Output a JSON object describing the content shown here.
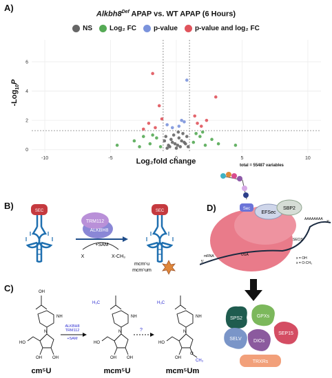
{
  "panel_labels": {
    "a": "A)",
    "b": "B)",
    "c": "C)",
    "d": "D)"
  },
  "chart_data": {
    "type": "scatter",
    "title_italic": "Alkbh8",
    "title_superscript": "Def",
    "title_rest": " APAP vs. WT APAP (6 Hours)",
    "xlabel": "Log₂fold change",
    "ylabel_main": "-Log",
    "ylabel_sub": "10",
    "ylabel_var": "P",
    "xlim": [
      -11,
      11
    ],
    "ylim": [
      -0.2,
      7.5
    ],
    "xticks": [
      "-10",
      "-5",
      "0",
      "5",
      "10"
    ],
    "xtick_values": [
      -10,
      -5,
      0,
      5,
      10
    ],
    "yticks": [
      "0",
      "2",
      "4",
      "6"
    ],
    "ytick_values": [
      0,
      2,
      4,
      6
    ],
    "fc_cutoff": 1,
    "p_cutoff": 1.3,
    "grid": true,
    "legend_position": "top",
    "total_note": "total = 55487 variables",
    "series": [
      {
        "name": "NS",
        "color": "#666666",
        "points": [
          [
            -0.5,
            0.2
          ],
          [
            -0.3,
            0.5
          ],
          [
            0.1,
            0.3
          ],
          [
            0.4,
            0.6
          ],
          [
            -0.8,
            0.9
          ],
          [
            0.7,
            0.4
          ],
          [
            0.2,
            0.8
          ],
          [
            -0.6,
            0.3
          ],
          [
            0.9,
            0.2
          ],
          [
            -0.2,
            1.0
          ],
          [
            0.5,
            1.1
          ],
          [
            -0.9,
            0.6
          ],
          [
            0.0,
            0.1
          ],
          [
            0.3,
            0.2
          ],
          [
            -0.4,
            0.7
          ],
          [
            0.8,
            0.9
          ],
          [
            -0.1,
            0.4
          ],
          [
            0.6,
            0.5
          ],
          [
            -0.7,
            0.1
          ],
          [
            0.15,
            1.2
          ]
        ]
      },
      {
        "name": "Log₂ FC",
        "color": "#55aa55",
        "points": [
          [
            -4.5,
            0.3
          ],
          [
            -3.2,
            0.6
          ],
          [
            -2.5,
            0.9
          ],
          [
            -2.0,
            0.4
          ],
          [
            -1.5,
            0.8
          ],
          [
            -1.2,
            0.2
          ],
          [
            -1.8,
            1.0
          ],
          [
            1.3,
            0.5
          ],
          [
            1.8,
            0.9
          ],
          [
            2.2,
            0.3
          ],
          [
            2.7,
            0.7
          ],
          [
            3.2,
            0.4
          ],
          [
            4.5,
            0.3
          ],
          [
            1.5,
            1.1
          ],
          [
            -2.8,
            0.2
          ],
          [
            2.0,
            1.2
          ]
        ]
      },
      {
        "name": "p-value",
        "color": "#7b93dc",
        "points": [
          [
            0.2,
            1.6
          ],
          [
            -0.3,
            1.5
          ],
          [
            0.6,
            1.9
          ],
          [
            0.8,
            4.75
          ],
          [
            -0.7,
            1.7
          ],
          [
            0.4,
            2.0
          ]
        ]
      },
      {
        "name": "p-value and log₂ FC",
        "color": "#e0545c",
        "points": [
          [
            -1.8,
            5.2
          ],
          [
            -1.1,
            2.1
          ],
          [
            -1.3,
            3.0
          ],
          [
            -2.1,
            1.8
          ],
          [
            -1.6,
            1.5
          ],
          [
            1.4,
            2.3
          ],
          [
            1.6,
            1.8
          ],
          [
            2.3,
            2.0
          ],
          [
            3.0,
            3.6
          ],
          [
            1.9,
            1.6
          ],
          [
            -2.5,
            1.4
          ]
        ]
      }
    ]
  },
  "panel_b": {
    "sec_label": "SEC",
    "enzyme_top": "TRM112",
    "enzyme_bottom": "ALKBH8",
    "cofactor": "+SAM",
    "substrate_in": "X",
    "substrate_out": "X-CH₃",
    "modification_1": "mcm⁵u",
    "modification_2": "mcm⁵um"
  },
  "panel_c": {
    "enzyme_line1": "ALKBH8",
    "enzyme_line2": "TRM112",
    "enzyme_line3": "+SAM",
    "unknown_step": "?",
    "compound_1": "cm⁵U",
    "compound_2": "mcm⁵U",
    "compound_3": "mcm⁵Um",
    "oh": "OH",
    "methyl": "H₃C",
    "o_label": "O",
    "ch3": "CH₃",
    "ho": "HO",
    "nh": "NH",
    "n": "N"
  },
  "panel_d": {
    "sec_label": "Sec",
    "efsec_label": "EFSec",
    "sbp2_label": "SBP2",
    "secis_label": "SECIS",
    "polya_label": "AAAAAAAA",
    "mrna_label": "mRNA",
    "five_prime": "5'",
    "three_prime": "3'",
    "uga_label": "UGA",
    "note_1": "x = OH",
    "note_2": "x = O-CH₃",
    "proteins": [
      {
        "label": "SPS2",
        "color": "#1f5c4f"
      },
      {
        "label": "GPXs",
        "color": "#7cb85c"
      },
      {
        "label": "SELV",
        "color": "#7a95c8"
      },
      {
        "label": "DIOs",
        "color": "#8b5a9e"
      },
      {
        "label": "SEP15",
        "color": "#d44d63"
      },
      {
        "label": "TRXRs",
        "color": "#f2a07a"
      }
    ]
  }
}
